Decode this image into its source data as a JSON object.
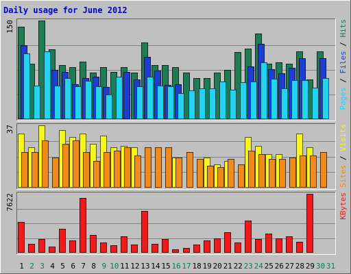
{
  "chart_data": {
    "type": "bar",
    "title": "Daily usage for June 2012",
    "days": [
      "1",
      "2",
      "3",
      "4",
      "5",
      "6",
      "7",
      "8",
      "9",
      "10",
      "11",
      "12",
      "13",
      "14",
      "15",
      "16",
      "17",
      "18",
      "19",
      "20",
      "21",
      "22",
      "23",
      "24",
      "25",
      "26",
      "27",
      "28",
      "29",
      "30",
      "31"
    ],
    "weekend_days": [
      "2",
      "3",
      "9",
      "10",
      "16",
      "17",
      "23",
      "24",
      "30",
      "31"
    ],
    "panels": [
      {
        "id": "hits_files_pages",
        "y_max_label": "150",
        "y_max": 150,
        "legend": [
          "Pages",
          "Files",
          "Hits"
        ],
        "series": [
          {
            "name": "Hits",
            "color": "#1e7b54",
            "values": [
              141,
              84,
              150,
              106,
              82,
              79,
              88,
              71,
              79,
              72,
              79,
              71,
              117,
              82,
              82,
              79,
              71,
              62,
              62,
              71,
              75,
              102,
              107,
              130,
              84,
              86,
              84,
              103,
              60,
              103,
              0
            ]
          },
          {
            "name": "Files",
            "color": "#1e3ecf",
            "values": [
              112,
              0,
              0,
              75,
              72,
              53,
              62,
              65,
              49,
              0,
              72,
              60,
              95,
              74,
              52,
              53,
              0,
              0,
              0,
              0,
              0,
              0,
              80,
              115,
              76,
              70,
              78,
              93,
              0,
              93,
              0
            ]
          },
          {
            "name": "Pages",
            "color": "#22d3f3",
            "values": [
              100,
              51,
              103,
              51,
              63,
              50,
              58,
              50,
              38,
              65,
              0,
              50,
              65,
              51,
              50,
              40,
              44,
              47,
              47,
              57,
              45,
              56,
              57,
              86,
              61,
              47,
              59,
              59,
              48,
              62,
              0
            ]
          }
        ]
      },
      {
        "id": "visits_sites",
        "y_max_label": "37",
        "y_max": 37,
        "legend": [
          "Sites",
          "Visits"
        ],
        "series": [
          {
            "name": "Visits",
            "color": "#f5f51f",
            "values": [
              32,
              24,
              37,
              0,
              34,
              30,
              32,
              26,
              31,
              24,
              25,
              24,
              0,
              0,
              0,
              18,
              0,
              0,
              18,
              14,
              16,
              0,
              30,
              25,
              20,
              20,
              0,
              32,
              24,
              0,
              0
            ]
          },
          {
            "name": "Sites",
            "color": "#f08a1a",
            "values": [
              21,
              21,
              28,
              18,
              26,
              28,
              21,
              16,
              21,
              22,
              24,
              19,
              24,
              24,
              24,
              18,
              21,
              17,
              13,
              12,
              17,
              14,
              22,
              20,
              17,
              17,
              18,
              19,
              19,
              21,
              0
            ]
          }
        ]
      },
      {
        "id": "kbytes",
        "y_max_label": "7622",
        "y_max": 7622,
        "legend": [
          "KBytes"
        ],
        "series": [
          {
            "name": "KBytes",
            "color": "#f01a1a",
            "values": [
              4004,
              1191,
              1786,
              794,
              3137,
              1590,
              7105,
              2330,
              1290,
              990,
              2100,
              1030,
              5400,
              1190,
              1790,
              450,
              660,
              1030,
              1590,
              1820,
              2640,
              1290,
              4140,
              1790,
              2440,
              1860,
              2100,
              1450,
              7622,
              0,
              0
            ]
          }
        ]
      }
    ]
  }
}
